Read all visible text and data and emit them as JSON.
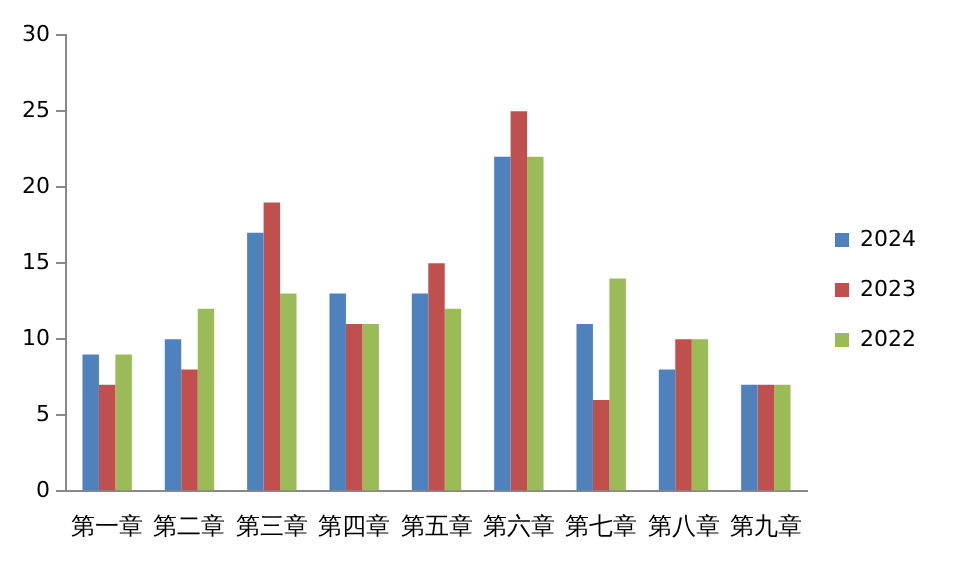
{
  "chart_data": {
    "type": "bar",
    "categories": [
      "第一章",
      "第二章",
      "第三章",
      "第四章",
      "第五章",
      "第六章",
      "第七章",
      "第八章",
      "第九章"
    ],
    "series": [
      {
        "name": "2024",
        "color": "#4f81bd",
        "values": [
          9,
          10,
          17,
          13,
          13,
          22,
          11,
          8,
          7
        ]
      },
      {
        "name": "2023",
        "color": "#c0504d",
        "values": [
          7,
          8,
          19,
          11,
          15,
          25,
          6,
          10,
          7
        ]
      },
      {
        "name": "2022",
        "color": "#9bbb59",
        "values": [
          9,
          12,
          13,
          11,
          12,
          22,
          14,
          10,
          7
        ]
      }
    ],
    "ylim": [
      0,
      30
    ],
    "yticks": [
      0,
      5,
      10,
      15,
      20,
      25,
      30
    ],
    "grid": false,
    "legend": "right"
  }
}
